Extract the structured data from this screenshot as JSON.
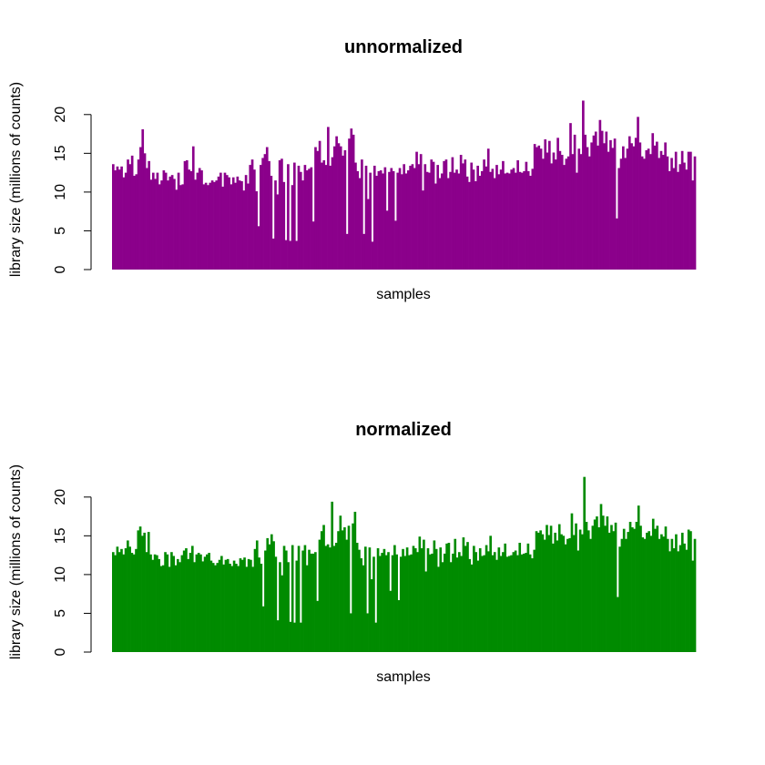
{
  "chart_data": [
    {
      "type": "bar",
      "title": "unnormalized",
      "xlabel": "samples",
      "ylabel": "library size (millions of counts)",
      "ylim": [
        0,
        23.5
      ],
      "yticks": [
        0,
        5,
        10,
        15,
        20
      ],
      "color": "#8B008B",
      "values": [
        13.6,
        12.8,
        13.3,
        12.9,
        13.3,
        11.9,
        12.5,
        14.2,
        13.6,
        14.7,
        12.1,
        12.3,
        14.2,
        15.8,
        18.1,
        15.0,
        13.1,
        14.0,
        11.6,
        12.5,
        11.7,
        12.5,
        11.0,
        11.5,
        12.8,
        12.5,
        11.5,
        12.0,
        12.2,
        11.7,
        10.3,
        12.5,
        10.9,
        11.0,
        14.0,
        14.1,
        12.9,
        12.7,
        15.9,
        11.6,
        12.5,
        13.1,
        12.8,
        11.0,
        11.2,
        10.9,
        11.2,
        11.5,
        11.3,
        11.5,
        12.0,
        12.5,
        10.7,
        12.5,
        12.2,
        11.9,
        11.0,
        11.9,
        11.2,
        12.0,
        11.5,
        11.4,
        10.2,
        12.2,
        11.1,
        13.5,
        14.2,
        12.9,
        10.1,
        5.6,
        13.5,
        14.4,
        14.9,
        15.8,
        14.0,
        12.1,
        4.0,
        11.5,
        9.7,
        14.1,
        14.3,
        11.3,
        3.8,
        13.6,
        3.7,
        10.9,
        13.8,
        3.7,
        13.4,
        12.6,
        11.5,
        13.5,
        12.8,
        13.0,
        13.2,
        6.2,
        15.8,
        15.3,
        16.6,
        13.8,
        14.1,
        13.5,
        18.4,
        13.4,
        14.5,
        15.9,
        17.2,
        16.3,
        15.9,
        14.7,
        15.4,
        4.6,
        16.9,
        18.2,
        17.4,
        13.8,
        12.7,
        11.8,
        14.2,
        4.6,
        13.4,
        9.1,
        12.5,
        3.6,
        13.4,
        12.1,
        12.7,
        12.8,
        12.4,
        13.2,
        7.6,
        12.6,
        13.1,
        12.7,
        6.3,
        12.5,
        13.1,
        12.3,
        13.6,
        12.4,
        12.8,
        13.4,
        13.6,
        13.1,
        15.2,
        13.6,
        14.9,
        10.2,
        13.6,
        12.6,
        12.5,
        14.2,
        13.9,
        11.1,
        13.5,
        11.8,
        12.4,
        14.0,
        14.2,
        11.8,
        12.6,
        14.5,
        12.5,
        12.9,
        12.4,
        14.8,
        13.7,
        14.2,
        12.0,
        11.3,
        13.8,
        12.9,
        11.4,
        13.4,
        12.1,
        12.7,
        14.2,
        13.3,
        15.6,
        12.6,
        13.0,
        11.8,
        13.5,
        12.3,
        12.9,
        14.0,
        12.4,
        12.5,
        12.4,
        12.9,
        13.1,
        12.5,
        14.1,
        12.6,
        12.5,
        12.7,
        13.9,
        12.7,
        12.1,
        13.0,
        16.2,
        15.8,
        16.0,
        15.6,
        14.3,
        16.8,
        15.1,
        16.6,
        13.7,
        15.1,
        14.2,
        17.0,
        15.3,
        14.8,
        13.5,
        14.3,
        14.6,
        18.9,
        14.9,
        17.4,
        12.5,
        15.6,
        14.9,
        21.8,
        17.4,
        15.8,
        14.6,
        16.4,
        17.3,
        17.8,
        16.0,
        19.3,
        17.9,
        16.3,
        17.8,
        15.2,
        16.7,
        15.7,
        16.9,
        6.6,
        13.1,
        14.3,
        15.9,
        14.4,
        15.6,
        17.2,
        16.3,
        15.9,
        17.0,
        19.7,
        16.4,
        14.6,
        14.3,
        15.4,
        15.6,
        14.9,
        17.6,
        16.0,
        16.5,
        14.4,
        15.3,
        14.8,
        16.4,
        14.6,
        12.7,
        14.4,
        13.1,
        15.2,
        12.6,
        13.6,
        15.3,
        13.8,
        12.9,
        15.2,
        15.2,
        11.5,
        14.6
      ]
    },
    {
      "type": "bar",
      "title": "normalized",
      "xlabel": "samples",
      "ylabel": "library size (millions of counts)",
      "ylim": [
        0,
        23.5
      ],
      "yticks": [
        0,
        5,
        10,
        15,
        20
      ],
      "color": "#008B00",
      "values": [
        12.9,
        12.5,
        13.6,
        12.9,
        13.3,
        12.6,
        13.4,
        14.4,
        13.6,
        12.8,
        12.6,
        13.3,
        15.7,
        16.2,
        15.0,
        15.4,
        12.9,
        15.5,
        12.6,
        11.9,
        12.6,
        12.5,
        12.0,
        11.1,
        11.2,
        12.9,
        12.6,
        11.0,
        12.9,
        12.4,
        11.2,
        12.0,
        11.6,
        12.5,
        13.1,
        13.4,
        12.0,
        12.8,
        13.7,
        11.6,
        12.6,
        12.8,
        12.6,
        11.7,
        12.3,
        12.6,
        12.8,
        11.8,
        11.5,
        11.2,
        11.5,
        11.9,
        12.4,
        11.3,
        11.9,
        12.0,
        11.4,
        11.1,
        11.8,
        11.4,
        11.1,
        12.1,
        11.9,
        12.2,
        11.0,
        12.0,
        11.9,
        11.0,
        13.3,
        14.4,
        12.2,
        11.4,
        5.9,
        13.1,
        14.7,
        13.9,
        15.2,
        14.3,
        12.3,
        4.1,
        11.6,
        9.9,
        13.7,
        13.1,
        11.6,
        3.9,
        13.8,
        3.8,
        11.8,
        13.7,
        3.8,
        13.1,
        13.8,
        11.2,
        13.2,
        12.7,
        12.7,
        12.9,
        6.6,
        14.5,
        15.6,
        16.4,
        13.7,
        13.9,
        13.5,
        19.4,
        13.7,
        14.1,
        15.6,
        17.6,
        15.7,
        16.1,
        14.5,
        16.3,
        5.0,
        16.6,
        18.1,
        14.1,
        13.2,
        12.1,
        11.2,
        13.6,
        5.0,
        13.5,
        9.4,
        12.3,
        3.8,
        13.4,
        12.4,
        12.8,
        13.3,
        12.5,
        12.9,
        7.9,
        12.5,
        13.8,
        12.6,
        6.7,
        12.3,
        13.3,
        12.4,
        13.5,
        12.5,
        12.6,
        13.7,
        13.4,
        12.9,
        14.9,
        13.4,
        14.5,
        10.4,
        13.4,
        12.6,
        12.7,
        14.4,
        13.3,
        11.0,
        13.5,
        11.6,
        12.7,
        14.0,
        14.1,
        11.6,
        12.7,
        14.6,
        12.2,
        12.9,
        12.4,
        14.8,
        13.7,
        14.2,
        12.0,
        11.3,
        13.7,
        12.9,
        11.8,
        13.4,
        12.4,
        12.5,
        13.8,
        13.0,
        15.0,
        12.5,
        12.9,
        11.9,
        13.5,
        12.4,
        12.9,
        14.0,
        12.3,
        12.4,
        12.5,
        12.9,
        13.1,
        12.5,
        14.1,
        12.6,
        12.7,
        12.8,
        14.0,
        12.6,
        12.1,
        13.2,
        15.6,
        15.4,
        15.7,
        15.2,
        14.5,
        16.4,
        15.1,
        16.3,
        14.0,
        15.4,
        14.4,
        16.5,
        15.2,
        15.0,
        13.9,
        14.6,
        14.7,
        17.9,
        15.1,
        16.6,
        13.1,
        15.8,
        15.2,
        22.6,
        16.8,
        15.7,
        14.6,
        16.3,
        17.1,
        17.5,
        16.1,
        19.1,
        17.6,
        16.3,
        17.5,
        15.4,
        16.4,
        15.6,
        16.7,
        7.1,
        13.6,
        14.6,
        15.9,
        14.6,
        15.5,
        16.8,
        16.1,
        15.9,
        16.8,
        18.9,
        16.3,
        14.8,
        14.6,
        15.4,
        15.6,
        15.0,
        17.2,
        15.9,
        16.3,
        14.6,
        15.2,
        14.9,
        16.2,
        14.6,
        13.0,
        14.6,
        13.4,
        15.2,
        13.0,
        13.8,
        15.4,
        14.0,
        13.2,
        15.8,
        15.6,
        11.8,
        14.6
      ]
    }
  ]
}
